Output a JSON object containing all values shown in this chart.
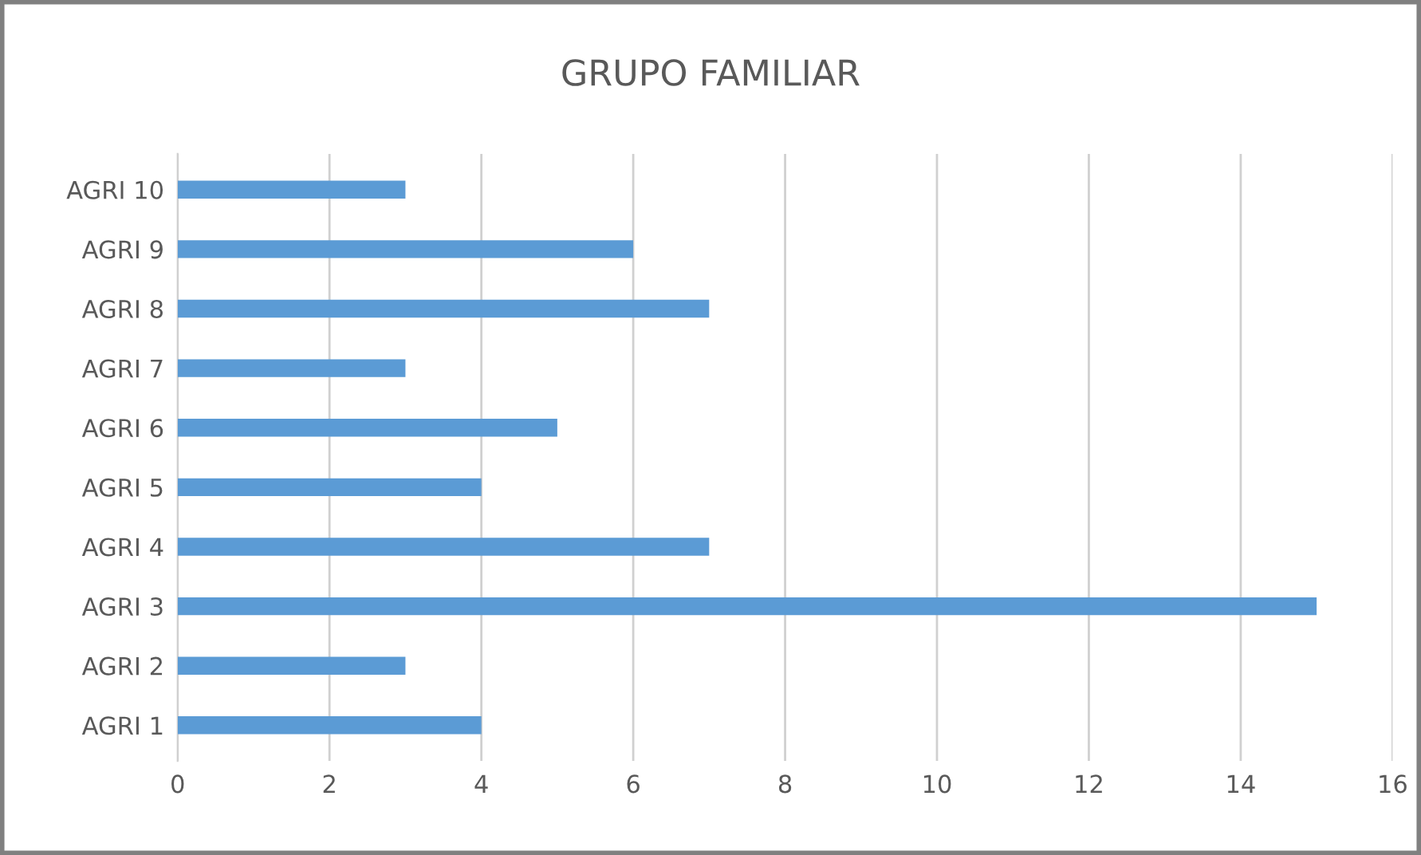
{
  "chart_data": {
    "type": "bar",
    "orientation": "horizontal",
    "title": "GRUPO FAMILIAR",
    "categories": [
      "AGRI 10",
      "AGRI 9",
      "AGRI 8",
      "AGRI 7",
      "AGRI 6",
      "AGRI 5",
      "AGRI 4",
      "AGRI 3",
      "AGRI 2",
      "AGRI 1"
    ],
    "values": [
      3,
      6,
      7,
      3,
      5,
      4,
      7,
      15,
      3,
      4
    ],
    "color": "#5b9bd5",
    "xlim": [
      0,
      16
    ],
    "xticks": [
      0,
      2,
      4,
      6,
      8,
      10,
      12,
      14,
      16
    ],
    "grid": "x"
  }
}
